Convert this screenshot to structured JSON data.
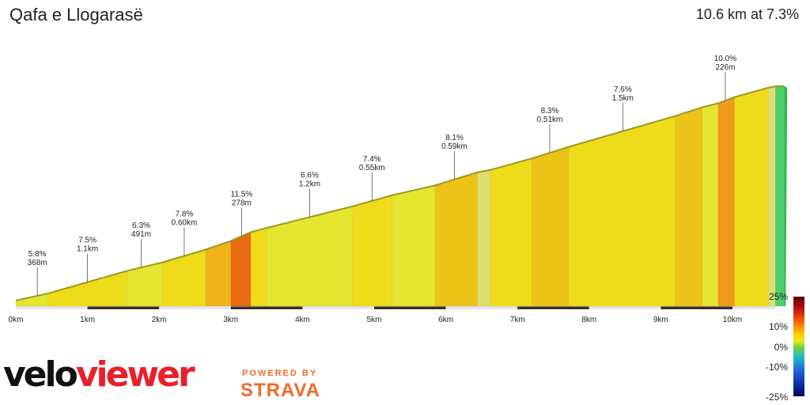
{
  "header": {
    "title": "Qafa e Llogarasë",
    "summary": "10.6 km at 7.3%"
  },
  "chart_data": {
    "type": "area",
    "title": "Qafa e Llogarasë",
    "subtitle": "10.6 km at 7.3%",
    "x_unit": "km",
    "xlim": [
      0,
      10.6
    ],
    "x_ticks": [
      "0km",
      "1km",
      "2km",
      "3km",
      "4km",
      "5km",
      "6km",
      "7km",
      "8km",
      "9km",
      "10km"
    ],
    "segments": [
      {
        "start": 0.0,
        "end": 0.1,
        "gradient": 6.0
      },
      {
        "start": 0.1,
        "end": 0.45,
        "gradient": 5.8
      },
      {
        "start": 0.45,
        "end": 1.55,
        "gradient": 7.5
      },
      {
        "start": 1.55,
        "end": 2.05,
        "gradient": 6.3
      },
      {
        "start": 2.05,
        "end": 2.65,
        "gradient": 7.8
      },
      {
        "start": 2.65,
        "end": 3.0,
        "gradient": 9.0
      },
      {
        "start": 3.0,
        "end": 3.28,
        "gradient": 11.5
      },
      {
        "start": 3.28,
        "end": 3.5,
        "gradient": 7.0
      },
      {
        "start": 3.5,
        "end": 4.7,
        "gradient": 6.6
      },
      {
        "start": 4.7,
        "end": 5.25,
        "gradient": 7.4
      },
      {
        "start": 5.25,
        "end": 5.85,
        "gradient": 6.0
      },
      {
        "start": 5.85,
        "end": 6.44,
        "gradient": 8.1
      },
      {
        "start": 6.44,
        "end": 6.62,
        "gradient": 5.0
      },
      {
        "start": 6.62,
        "end": 7.2,
        "gradient": 7.2
      },
      {
        "start": 7.2,
        "end": 7.71,
        "gradient": 8.3
      },
      {
        "start": 7.71,
        "end": 9.2,
        "gradient": 7.6
      },
      {
        "start": 9.2,
        "end": 9.58,
        "gradient": 8.5
      },
      {
        "start": 9.58,
        "end": 9.8,
        "gradient": 6.5
      },
      {
        "start": 9.8,
        "end": 10.03,
        "gradient": 10.0
      },
      {
        "start": 10.03,
        "end": 10.5,
        "gradient": 7.3
      },
      {
        "start": 10.5,
        "end": 10.6,
        "gradient": 5.0
      },
      {
        "start": 10.6,
        "end": 10.72,
        "gradient": 1.0
      }
    ],
    "annotations": [
      {
        "x": 0.3,
        "gradient": "5.8%",
        "length": "368m"
      },
      {
        "x": 1.0,
        "gradient": "7.5%",
        "length": "1.1km"
      },
      {
        "x": 1.75,
        "gradient": "6.3%",
        "length": "491m"
      },
      {
        "x": 2.35,
        "gradient": "7.8%",
        "length": "0.60km"
      },
      {
        "x": 3.15,
        "gradient": "11.5%",
        "length": "278m"
      },
      {
        "x": 4.1,
        "gradient": "6.6%",
        "length": "1.2km"
      },
      {
        "x": 4.97,
        "gradient": "7.4%",
        "length": "0.55km"
      },
      {
        "x": 6.12,
        "gradient": "8.1%",
        "length": "0.59km"
      },
      {
        "x": 7.45,
        "gradient": "8.3%",
        "length": "0.51km"
      },
      {
        "x": 8.47,
        "gradient": "7.6%",
        "length": "1.5km"
      },
      {
        "x": 9.9,
        "gradient": "10.0%",
        "length": "226m"
      }
    ],
    "legend": {
      "type": "gradient-scale",
      "placement": "bottom-right",
      "labels": [
        "25%",
        "10%",
        "0%",
        "-10%",
        "-25%"
      ]
    }
  },
  "branding": {
    "velo": "velo",
    "viewer": "viewer",
    "powered_by": "POWERED BY",
    "strava": "STRAVA"
  }
}
